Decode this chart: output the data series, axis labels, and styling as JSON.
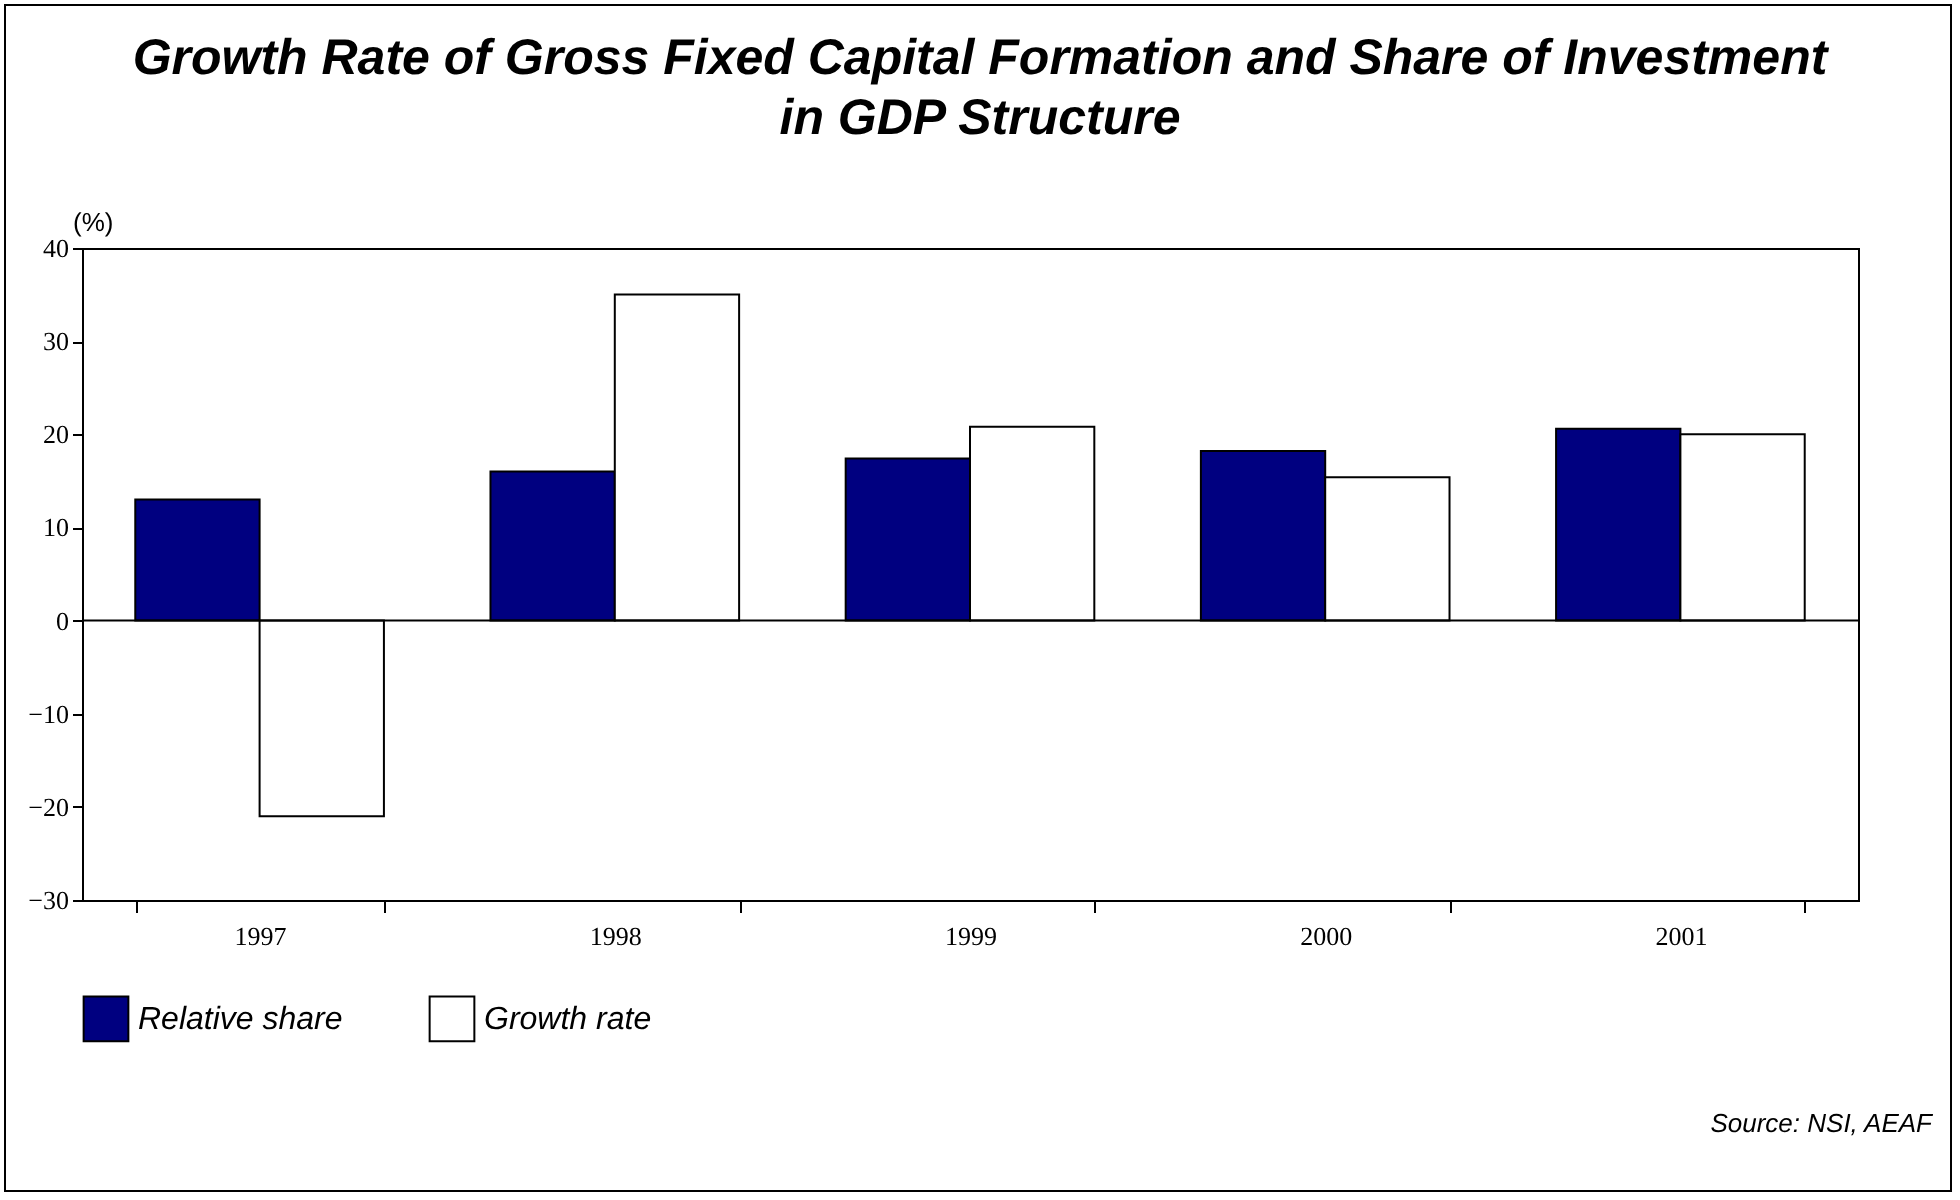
{
  "chart_data": {
    "type": "bar",
    "title": "Growth Rate of Gross Fixed Capital Formation and Share of Investment in GDP Structure",
    "ylabel": "(%)",
    "categories": [
      "1997",
      "1998",
      "1999",
      "2000",
      "2001"
    ],
    "series": [
      {
        "name": "Relative share",
        "color": "#000080",
        "values": [
          13,
          16,
          17.4,
          18.2,
          20.6
        ]
      },
      {
        "name": "Growth rate",
        "color": "#ffffff",
        "values": [
          -21,
          35,
          20.8,
          15.4,
          20
        ]
      }
    ],
    "ylim": [
      -30,
      40
    ],
    "yticks": [
      -30,
      -20,
      -10,
      0,
      10,
      20,
      30,
      40
    ],
    "grid": false,
    "legend": "bottom",
    "ref_lines": [
      {
        "axis": "y",
        "value": 0
      }
    ],
    "annotations": [
      "Source: NSI, AEAF"
    ]
  }
}
